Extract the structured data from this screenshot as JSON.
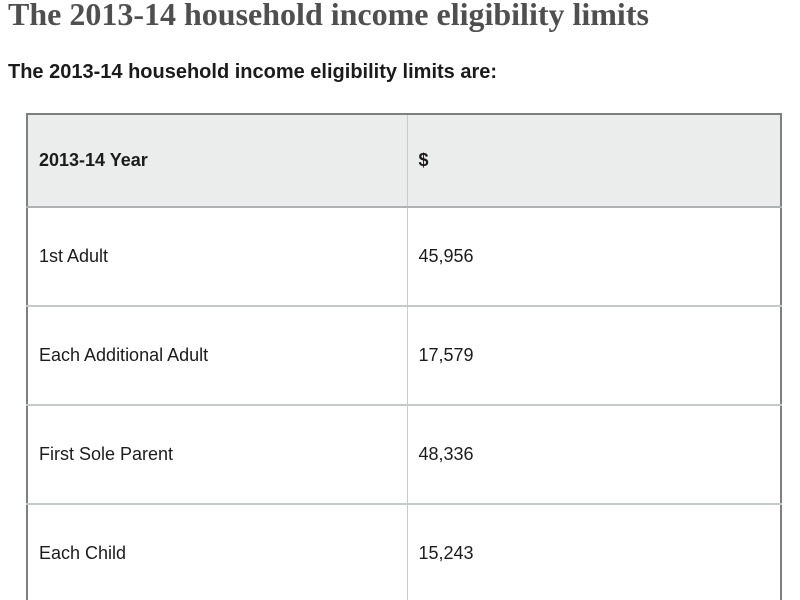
{
  "page": {
    "title": "The 2013-14 household income eligibility limits",
    "intro": "The 2013-14 household income eligibility limits are:"
  },
  "table": {
    "columns": [
      "2013-14 Year",
      "$"
    ],
    "rows": [
      {
        "label": "1st Adult",
        "value": "45,956"
      },
      {
        "label": "Each Additional Adult",
        "value": "17,579"
      },
      {
        "label": "First Sole Parent",
        "value": "48,336"
      },
      {
        "label": "Each Child",
        "value": "15,243"
      }
    ]
  },
  "colors": {
    "header_bg": "#ebecec",
    "outer_border": "#7e8080",
    "row_border": "#c6c9c9",
    "column_border": "#c9cccc",
    "title_color": "#4f4f4f",
    "body_text_color": "#1c1c1c"
  }
}
